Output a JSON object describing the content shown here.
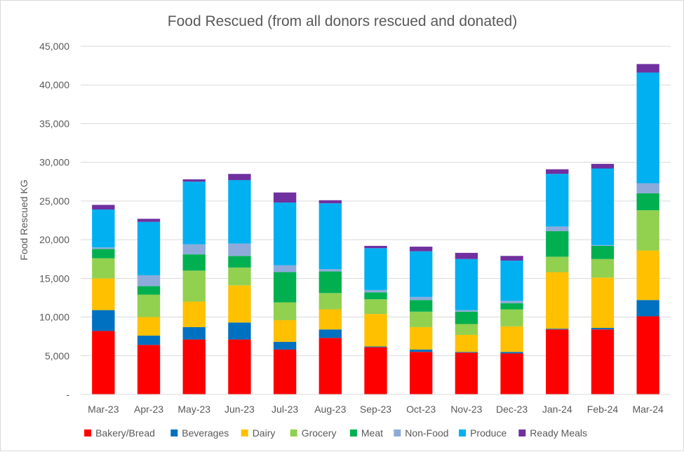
{
  "chart_data": {
    "type": "bar",
    "stacked": true,
    "title": "Food Rescued (from all donors rescued and donated)",
    "xlabel": "",
    "ylabel": "Food Rescued KG",
    "ylim": [
      0,
      45000
    ],
    "yticks": [
      {
        "value": 0,
        "label": "-"
      },
      {
        "value": 5000,
        "label": "5,000"
      },
      {
        "value": 10000,
        "label": "10,000"
      },
      {
        "value": 15000,
        "label": "15,000"
      },
      {
        "value": 20000,
        "label": "20,000"
      },
      {
        "value": 25000,
        "label": "25,000"
      },
      {
        "value": 30000,
        "label": "30,000"
      },
      {
        "value": 35000,
        "label": "35,000"
      },
      {
        "value": 40000,
        "label": "40,000"
      },
      {
        "value": 45000,
        "label": "45,000"
      }
    ],
    "grid": true,
    "legend_position": "bottom",
    "categories": [
      "Mar-23",
      "Apr-23",
      "May-23",
      "Jun-23",
      "Jul-23",
      "Aug-23",
      "Sep-23",
      "Oct-23",
      "Nov-23",
      "Dec-23",
      "Jan-24",
      "Feb-24",
      "Mar-24"
    ],
    "series": [
      {
        "name": "Bakery/Bread",
        "color": "#ff0000",
        "values": [
          8200,
          6400,
          7100,
          7100,
          5800,
          7300,
          6100,
          5500,
          5400,
          5300,
          8400,
          8400,
          10100
        ]
      },
      {
        "name": "Beverages",
        "color": "#0070c0",
        "values": [
          2700,
          1200,
          1600,
          2200,
          1000,
          1100,
          100,
          300,
          100,
          200,
          100,
          200,
          2100
        ]
      },
      {
        "name": "Dairy",
        "color": "#ffc000",
        "values": [
          4100,
          2400,
          3300,
          4800,
          2800,
          2600,
          4200,
          2900,
          2200,
          3300,
          7300,
          6500,
          6400
        ]
      },
      {
        "name": "Grocery",
        "color": "#92d050",
        "values": [
          2600,
          2900,
          4000,
          2300,
          2300,
          2100,
          1900,
          2000,
          1400,
          2200,
          2000,
          2400,
          5200
        ]
      },
      {
        "name": "Meat",
        "color": "#00b050",
        "values": [
          1200,
          1100,
          2100,
          1500,
          3900,
          2800,
          900,
          1500,
          1600,
          800,
          3300,
          1700,
          2200
        ]
      },
      {
        "name": "Non-Food",
        "color": "#8eaadb",
        "values": [
          200,
          1400,
          1300,
          1600,
          900,
          300,
          300,
          400,
          200,
          300,
          600,
          100,
          1300
        ]
      },
      {
        "name": "Produce",
        "color": "#00b0f0",
        "values": [
          4900,
          6900,
          8100,
          8200,
          8100,
          8500,
          5400,
          5900,
          6600,
          5200,
          6800,
          9900,
          14300
        ]
      },
      {
        "name": "Ready Meals",
        "color": "#7030a0",
        "values": [
          600,
          400,
          300,
          800,
          1300,
          400,
          300,
          600,
          800,
          600,
          600,
          600,
          1100
        ]
      }
    ]
  }
}
